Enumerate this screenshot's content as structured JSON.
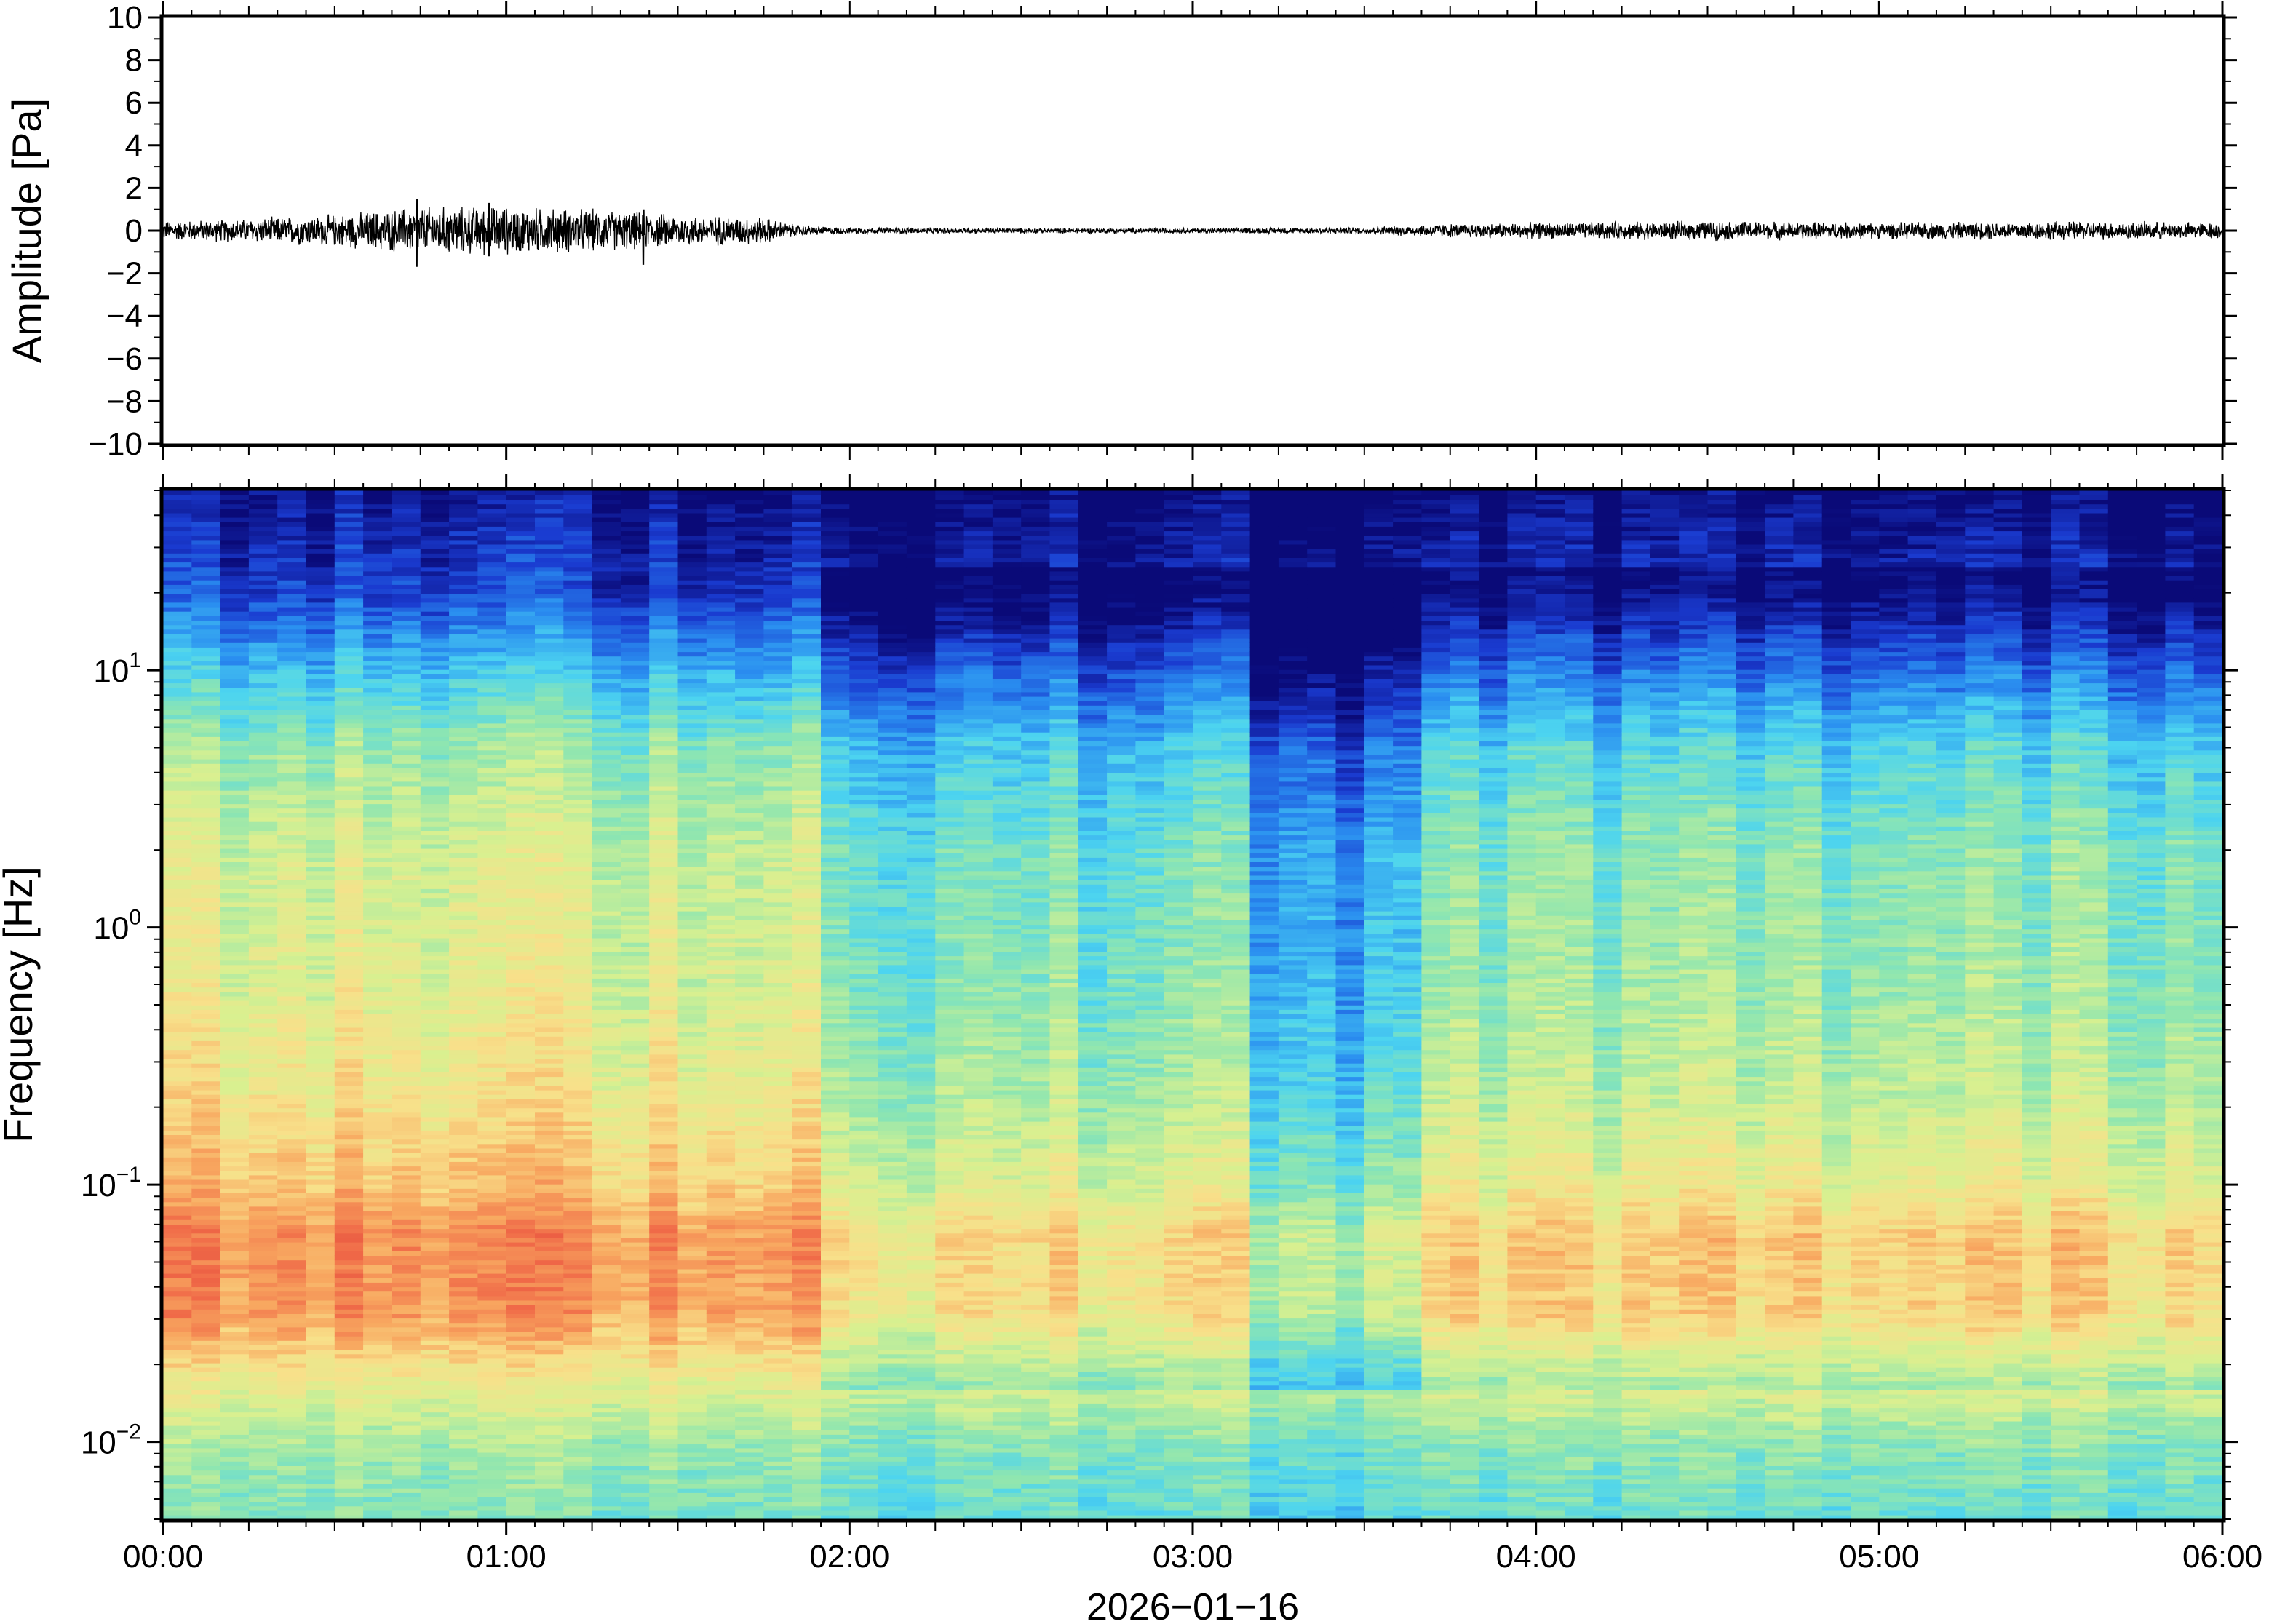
{
  "chart_data": [
    {
      "type": "line",
      "ylabel": "Amplitude [Pa]",
      "ylim": [
        -10,
        10
      ],
      "yticks": [
        10,
        8,
        6,
        4,
        2,
        0,
        -2,
        -4,
        -6,
        -8,
        -10
      ],
      "ytick_labels": [
        "10",
        "8",
        "6",
        "4",
        "2",
        "0",
        "−2",
        "−4",
        "−6",
        "−8",
        "−10"
      ],
      "xlim_hours": [
        0,
        6
      ],
      "grid": false,
      "series": [
        {
          "x_hours": [
            0,
            0.25,
            0.5,
            0.75,
            1.0,
            1.25,
            1.5,
            1.75,
            1.85,
            2.0,
            2.5,
            3.0,
            3.5,
            3.7,
            4.0,
            4.5,
            5.0,
            5.5,
            6.0
          ],
          "envelope_pa": [
            0.35,
            0.45,
            0.6,
            0.9,
            0.9,
            0.8,
            0.6,
            0.5,
            0.2,
            0.12,
            0.1,
            0.1,
            0.12,
            0.25,
            0.3,
            0.35,
            0.3,
            0.35,
            0.3
          ],
          "peaks": [
            {
              "x_hours": 0.74,
              "max": 1.5,
              "min": -1.7
            },
            {
              "x_hours": 0.95,
              "max": 1.3,
              "min": -1.2
            },
            {
              "x_hours": 1.4,
              "max": 1.0,
              "min": -1.6
            }
          ]
        }
      ]
    },
    {
      "type": "heatmap",
      "ylabel": "Frequency [Hz]",
      "yscale": "log",
      "ylim_hz": [
        0.005,
        50
      ],
      "ytick_hz": [
        0.01,
        0.1,
        1,
        10
      ],
      "ytick_labels": [
        {
          "base": "10",
          "exp": "−2"
        },
        {
          "base": "10",
          "exp": "−1"
        },
        {
          "base": "10",
          "exp": "0"
        },
        {
          "base": "10",
          "exp": "1"
        }
      ],
      "xlabel": "2026−01−16",
      "xlim_hours": [
        0,
        6
      ],
      "xtick_hours": [
        0,
        1,
        2,
        3,
        4,
        5,
        6
      ],
      "xtick_labels": [
        "00:00",
        "01:00",
        "02:00",
        "03:00",
        "04:00",
        "05:00",
        "06:00"
      ],
      "colormap": "spectral (blue = low power, red = high power)",
      "colors": [
        "#0a0a78",
        "#1a3bd0",
        "#2a8ef0",
        "#4cd4f0",
        "#8fe6b0",
        "#d8f090",
        "#f8e08a",
        "#f8a860",
        "#f06a48",
        "#e0443a"
      ],
      "columns_per_hour": 12,
      "description_bands": [
        {
          "hz_range": [
            0.005,
            0.015
          ],
          "level": "cyan-green"
        },
        {
          "hz_range": [
            0.02,
            0.2
          ],
          "level": "orange-red"
        },
        {
          "hz_range": [
            0.3,
            5
          ],
          "level": "yellow-green"
        },
        {
          "hz_range": [
            10,
            50
          ],
          "level": "dark blue"
        }
      ],
      "segments": [
        {
          "from_hours": 0.0,
          "to_hours": 1.88,
          "shift": 0.0
        },
        {
          "from_hours": 1.88,
          "to_hours": 3.2,
          "shift": -0.15
        },
        {
          "from_hours": 3.2,
          "to_hours": 3.65,
          "shift": -0.3
        },
        {
          "from_hours": 3.65,
          "to_hours": 6.0,
          "shift": -0.12
        }
      ]
    }
  ]
}
